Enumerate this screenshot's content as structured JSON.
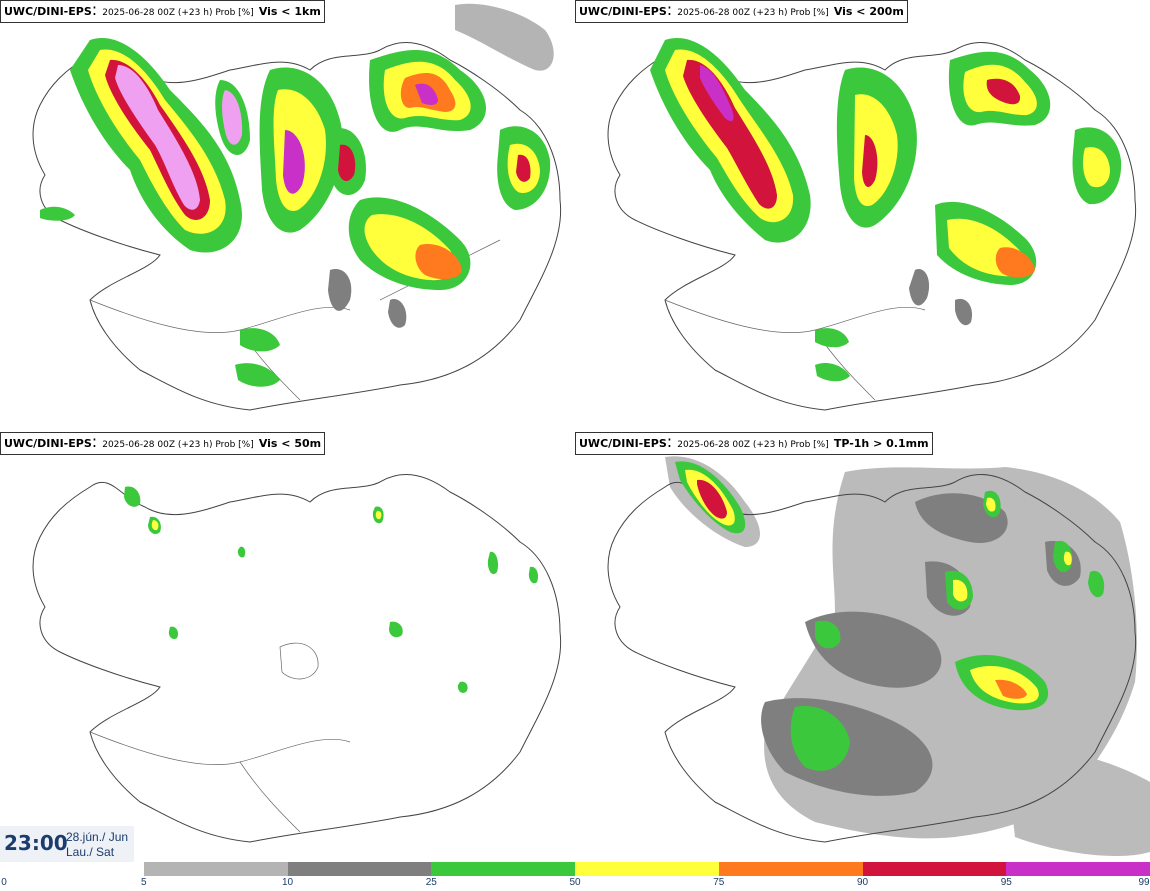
{
  "panels": [
    {
      "model": "UWC/DINI-EPS",
      "run": "2025-06-28 00Z (+23 h) Prob [%]",
      "parameter": "Vis < 1km"
    },
    {
      "model": "UWC/DINI-EPS",
      "run": "2025-06-28 00Z (+23 h) Prob [%]",
      "parameter": "Vis < 200m"
    },
    {
      "model": "UWC/DINI-EPS",
      "run": "2025-06-28 00Z (+23 h) Prob [%]",
      "parameter": "Vis < 50m"
    },
    {
      "model": "UWC/DINI-EPS",
      "run": "2025-06-28 00Z (+23 h) Prob [%]",
      "parameter": "TP-1h > 0.1mm"
    }
  ],
  "valid_time": {
    "time": "23:00",
    "date_line1": "28.jún./ Jun",
    "date_line2": "Lau./ Sat"
  },
  "colorbar": {
    "ticks": [
      "0",
      "5",
      "10",
      "25",
      "50",
      "75",
      "90",
      "95",
      "99"
    ],
    "colors": [
      "#ffffff",
      "#b4b4b4",
      "#7f7f7f",
      "#3cc83c",
      "#ffff3c",
      "#ff7a1e",
      "#d2143c",
      "#c830c8",
      "#f0a0f0"
    ]
  }
}
